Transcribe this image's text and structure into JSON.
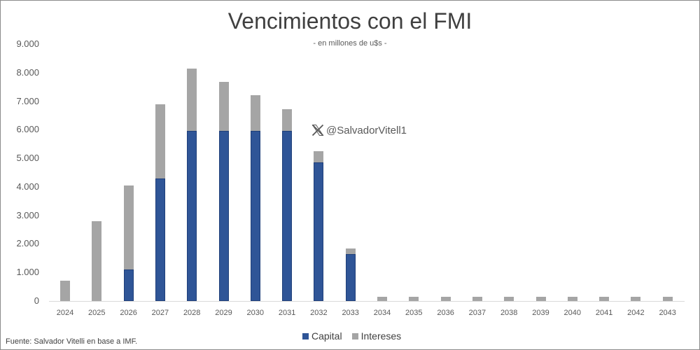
{
  "chart_data": {
    "type": "bar",
    "stacked": true,
    "title": "Vencimientos con el FMI",
    "subtitle": "- en millones de u$s -",
    "xlabel": "",
    "ylabel": "",
    "ylim": [
      0,
      9000
    ],
    "yticks": [
      "0",
      "1.000",
      "2.000",
      "3.000",
      "4.000",
      "5.000",
      "6.000",
      "7.000",
      "8.000",
      "9.000"
    ],
    "categories": [
      "2024",
      "2025",
      "2026",
      "2027",
      "2028",
      "2029",
      "2030",
      "2031",
      "2032",
      "2033",
      "2034",
      "2035",
      "2036",
      "2037",
      "2038",
      "2039",
      "2040",
      "2041",
      "2042",
      "2043"
    ],
    "series": [
      {
        "name": "Capital",
        "color": "#2f5597",
        "values": [
          0,
          0,
          1100,
          4300,
          5950,
          5950,
          5950,
          5950,
          4850,
          1650,
          0,
          0,
          0,
          0,
          0,
          0,
          0,
          0,
          0,
          0
        ]
      },
      {
        "name": "Intereses",
        "color": "#a5a5a5",
        "values": [
          700,
          2800,
          2950,
          2600,
          2200,
          1730,
          1250,
          760,
          400,
          200,
          150,
          150,
          150,
          150,
          150,
          150,
          150,
          150,
          150,
          150
        ]
      }
    ],
    "legend_position": "bottom",
    "grid": false
  },
  "watermark": {
    "handle": "@SalvadorVitell1",
    "icon": "x-logo-icon"
  },
  "source": "Fuente: Salvador Vitelli en base a IMF."
}
